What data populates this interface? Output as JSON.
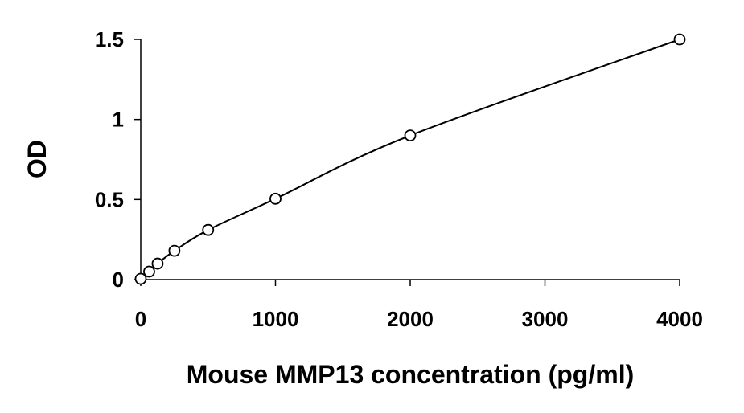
{
  "chart_data": {
    "type": "scatter",
    "title": "",
    "xlabel": "Mouse MMP13 concentration (pg/ml)",
    "ylabel": "OD",
    "xlim": [
      0,
      4000
    ],
    "ylim": [
      0,
      1.5
    ],
    "x_ticks": [
      0,
      1000,
      2000,
      3000,
      4000
    ],
    "x_tick_labels": [
      "0",
      "1000",
      "2000",
      "3000",
      "4000"
    ],
    "y_ticks": [
      0,
      0.5,
      1,
      1.5
    ],
    "y_tick_labels": [
      "0",
      "0.5",
      "1",
      "1.5"
    ],
    "grid": false,
    "legend": "none",
    "marker": "open-circle",
    "trendline": "smooth curve through points",
    "series": [
      {
        "x": [
          0,
          62.5,
          125,
          250,
          500,
          1000,
          2000,
          4000
        ],
        "y": [
          0.005,
          0.05,
          0.1,
          0.18,
          0.31,
          0.505,
          0.9,
          1.5
        ]
      }
    ]
  },
  "colors": {
    "line": "#000000",
    "marker_fill": "#ffffff",
    "marker_stroke": "#000000"
  }
}
